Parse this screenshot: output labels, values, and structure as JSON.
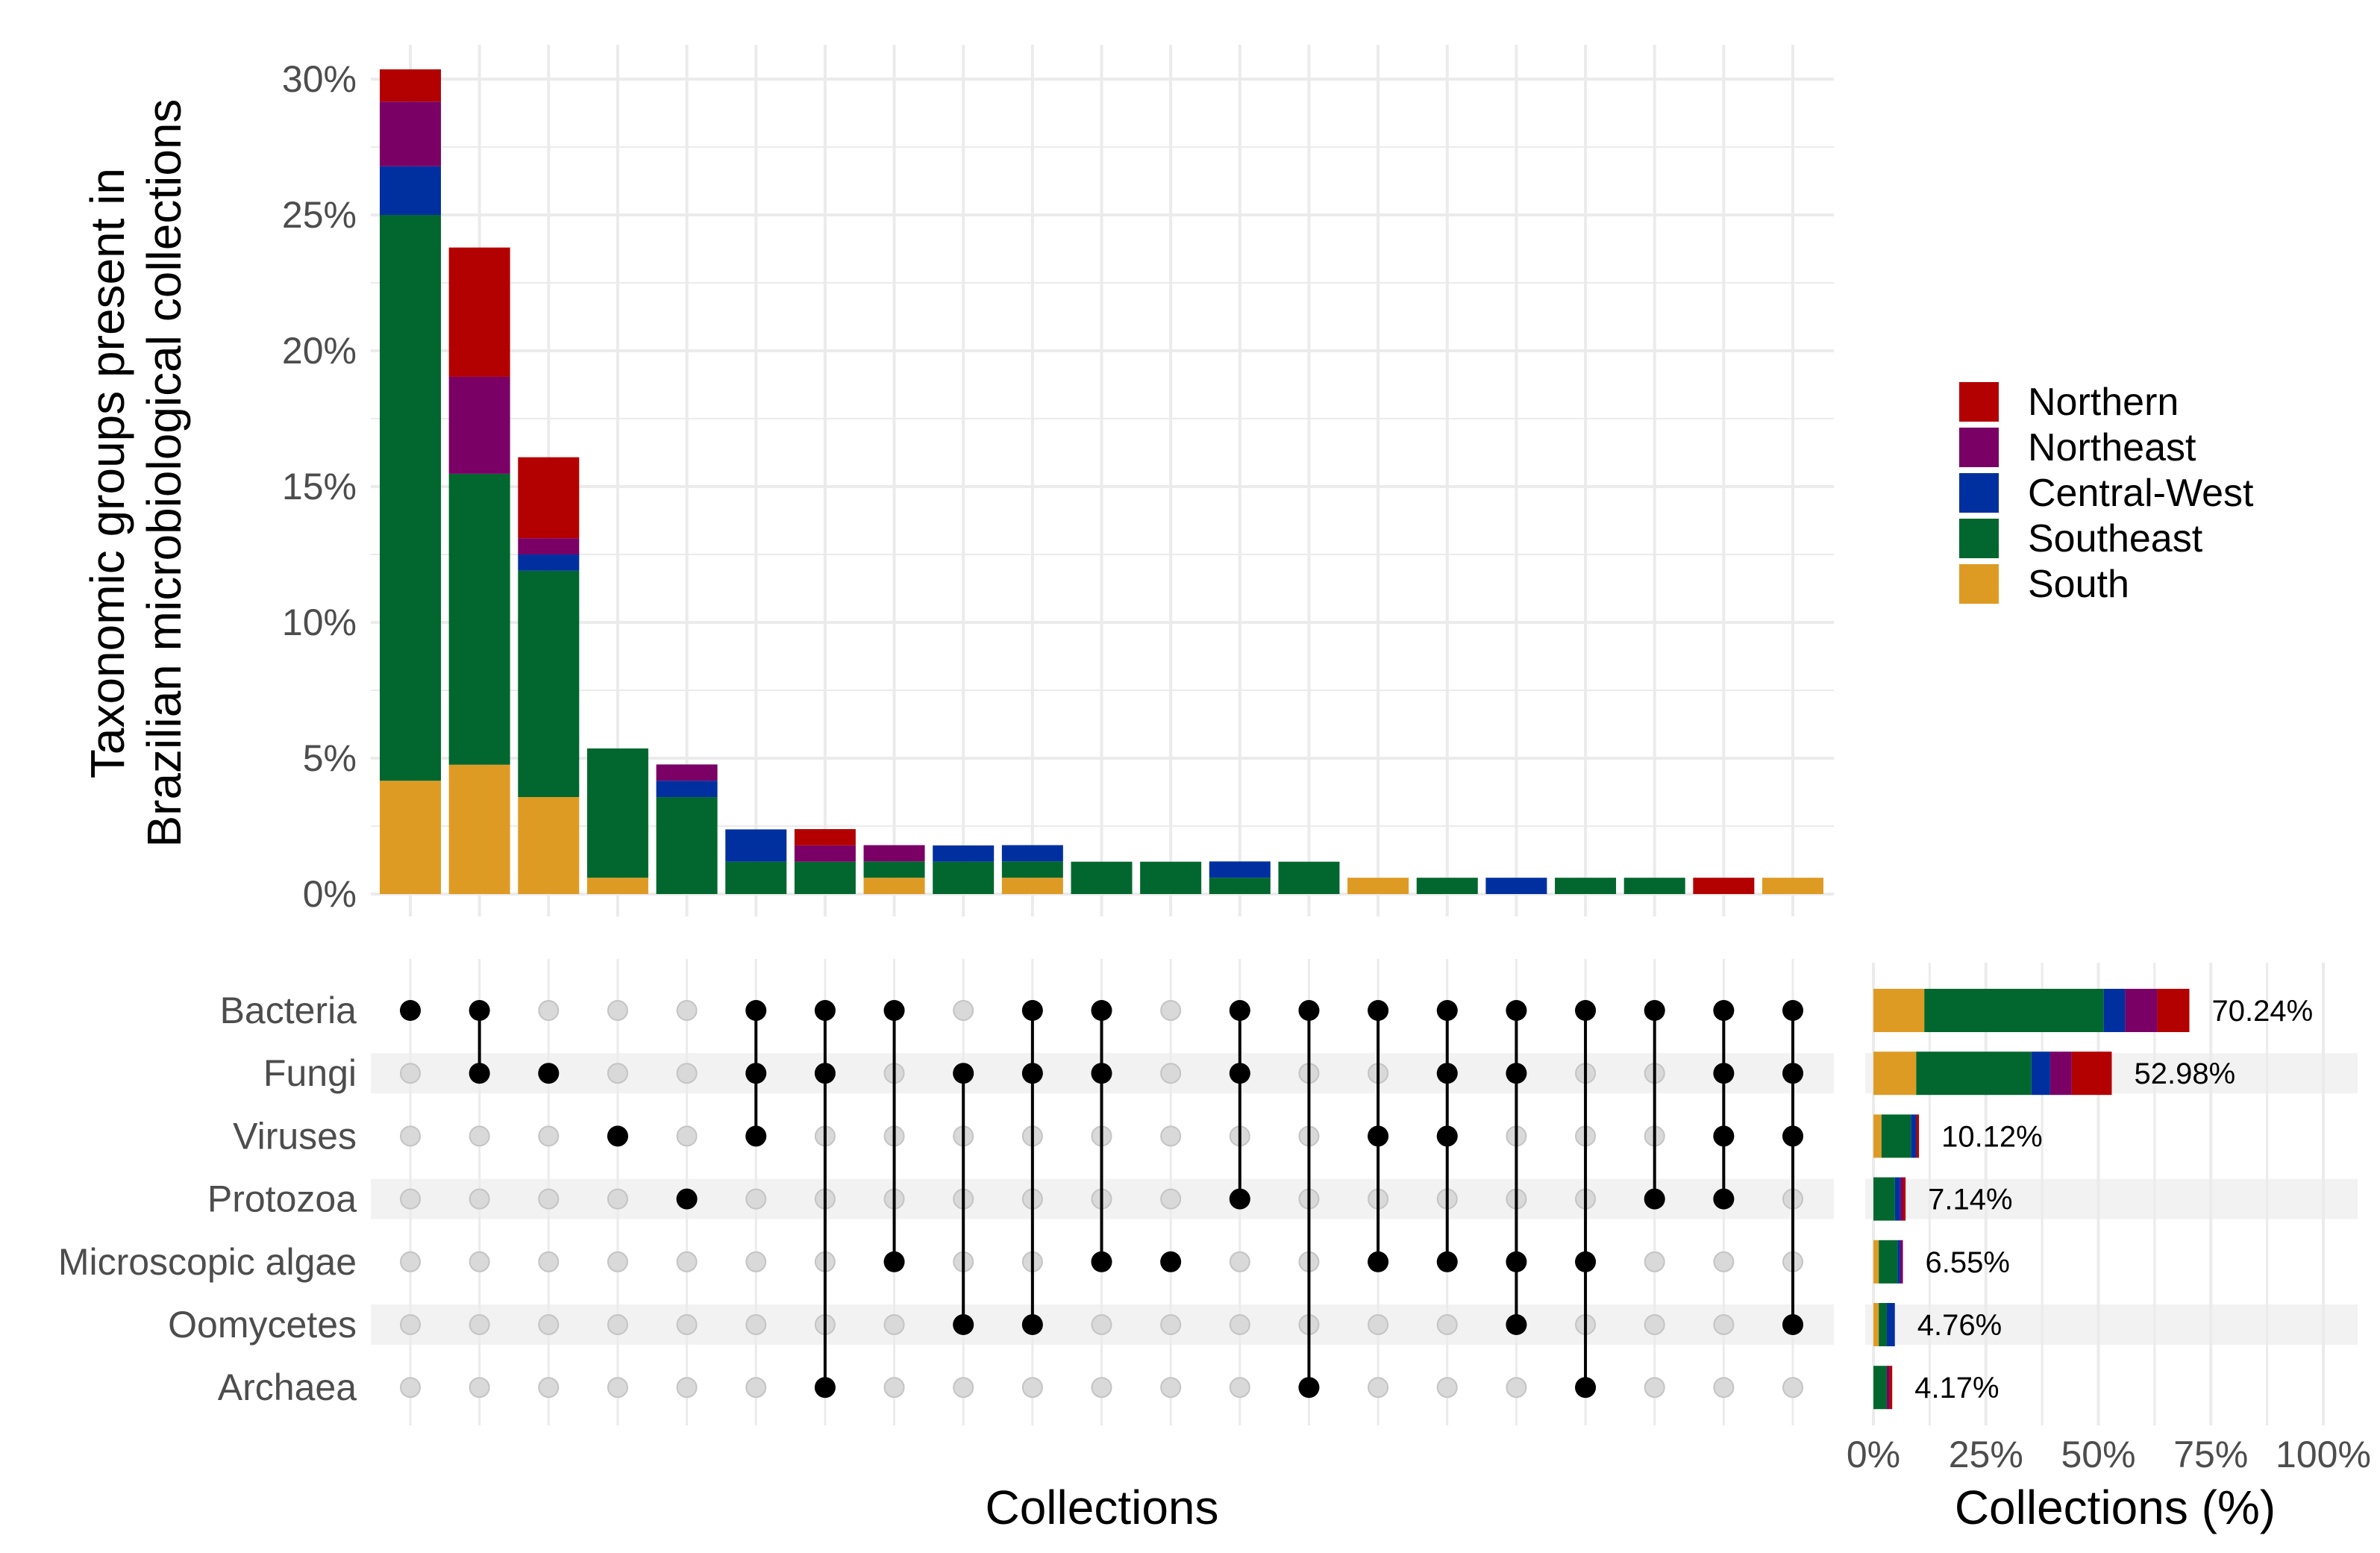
{
  "chart_data": {
    "type": "upset",
    "colors": {
      "South": "#DE9B24",
      "Southeast": "#02672E",
      "Central-West": "#0030A0",
      "Northeast": "#7A0066",
      "Northern": "#B30000"
    },
    "regions_stack_order": [
      "South",
      "Southeast",
      "Central-West",
      "Northeast",
      "Northern"
    ],
    "legend": {
      "placement": "right",
      "entries": [
        "Northern",
        "Northeast",
        "Central-West",
        "Southeast",
        "South"
      ]
    },
    "intersection_chart": {
      "type": "stacked-bar",
      "ylabel_lines": [
        "Taxonomic groups present in",
        "Brazilian microbiological collections"
      ],
      "xlabel": "Collections",
      "ylim": [
        0,
        30
      ],
      "yticks": [
        "0%",
        "5%",
        "10%",
        "15%",
        "20%",
        "25%",
        "30%"
      ],
      "grid": true,
      "bars": [
        {
          "sets": [
            "Bacteria"
          ],
          "values": {
            "South": 4.17,
            "Southeast": 20.83,
            "Central-West": 1.79,
            "Northeast": 2.38,
            "Northern": 1.19
          }
        },
        {
          "sets": [
            "Bacteria",
            "Fungi"
          ],
          "values": {
            "South": 4.76,
            "Southeast": 10.71,
            "Central-West": 0,
            "Northeast": 3.57,
            "Northern": 4.76
          }
        },
        {
          "sets": [
            "Fungi"
          ],
          "values": {
            "South": 3.57,
            "Southeast": 8.33,
            "Central-West": 0.6,
            "Northeast": 0.6,
            "Northern": 2.98
          }
        },
        {
          "sets": [
            "Viruses"
          ],
          "values": {
            "South": 0.6,
            "Southeast": 4.76
          }
        },
        {
          "sets": [
            "Protozoa"
          ],
          "values": {
            "Southeast": 3.57,
            "Central-West": 0.6,
            "Northeast": 0.6
          }
        },
        {
          "sets": [
            "Bacteria",
            "Fungi",
            "Viruses"
          ],
          "values": {
            "Southeast": 1.19,
            "Central-West": 1.19
          }
        },
        {
          "sets": [
            "Bacteria",
            "Fungi",
            "Archaea"
          ],
          "values": {
            "Southeast": 1.19,
            "Northeast": 0.6,
            "Northern": 0.6
          }
        },
        {
          "sets": [
            "Bacteria",
            "Microscopic algae"
          ],
          "values": {
            "South": 0.6,
            "Southeast": 0.6,
            "Northeast": 0.6
          }
        },
        {
          "sets": [
            "Fungi",
            "Oomycetes"
          ],
          "values": {
            "Southeast": 1.19,
            "Central-West": 0.6
          }
        },
        {
          "sets": [
            "Bacteria",
            "Fungi",
            "Oomycetes"
          ],
          "values": {
            "South": 0.6,
            "Southeast": 0.6,
            "Central-West": 0.6
          }
        },
        {
          "sets": [
            "Bacteria",
            "Fungi",
            "Microscopic algae"
          ],
          "values": {
            "Southeast": 1.19
          }
        },
        {
          "sets": [
            "Microscopic algae"
          ],
          "values": {
            "Southeast": 1.19
          }
        },
        {
          "sets": [
            "Bacteria",
            "Fungi",
            "Protozoa"
          ],
          "values": {
            "Southeast": 0.6,
            "Central-West": 0.6
          }
        },
        {
          "sets": [
            "Bacteria",
            "Archaea"
          ],
          "values": {
            "Southeast": 1.19
          }
        },
        {
          "sets": [
            "Bacteria",
            "Viruses",
            "Microscopic algae"
          ],
          "values": {
            "South": 0.6
          }
        },
        {
          "sets": [
            "Bacteria",
            "Fungi",
            "Viruses",
            "Microscopic algae"
          ],
          "values": {
            "Southeast": 0.6
          }
        },
        {
          "sets": [
            "Bacteria",
            "Fungi",
            "Microscopic algae",
            "Oomycetes"
          ],
          "values": {
            "Central-West": 0.6
          }
        },
        {
          "sets": [
            "Bacteria",
            "Microscopic algae",
            "Archaea"
          ],
          "values": {
            "Southeast": 0.6
          }
        },
        {
          "sets": [
            "Bacteria",
            "Protozoa"
          ],
          "values": {
            "Southeast": 0.6
          }
        },
        {
          "sets": [
            "Bacteria",
            "Fungi",
            "Viruses",
            "Protozoa"
          ],
          "values": {
            "Northern": 0.6
          }
        },
        {
          "sets": [
            "Bacteria",
            "Fungi",
            "Viruses",
            "Oomycetes"
          ],
          "values": {
            "South": 0.6
          }
        }
      ]
    },
    "set_size_chart": {
      "type": "stacked-bar-horizontal",
      "xlabel": "Collections (%)",
      "xlim": [
        0,
        100
      ],
      "xticks": [
        "0%",
        "25%",
        "50%",
        "75%",
        "100%"
      ],
      "sets": [
        {
          "name": "Bacteria",
          "total_label": "70.24%",
          "values": {
            "South": 11.31,
            "Southeast": 39.88,
            "Central-West": 4.76,
            "Northeast": 7.14,
            "Northern": 7.14
          }
        },
        {
          "name": "Fungi",
          "total_label": "52.98%",
          "values": {
            "South": 9.52,
            "Southeast": 25.6,
            "Central-West": 4.17,
            "Northeast": 4.76,
            "Northern": 8.93
          }
        },
        {
          "name": "Viruses",
          "total_label": "10.12%",
          "values": {
            "South": 1.79,
            "Southeast": 6.55,
            "Central-West": 1.19,
            "Northern": 0.6
          }
        },
        {
          "name": "Protozoa",
          "total_label": "7.14%",
          "values": {
            "Southeast": 4.76,
            "Central-West": 1.19,
            "Northeast": 0.6,
            "Northern": 0.6
          }
        },
        {
          "name": "Microscopic algae",
          "total_label": "6.55%",
          "values": {
            "South": 1.19,
            "Southeast": 4.17,
            "Central-West": 0.6,
            "Northeast": 0.6
          }
        },
        {
          "name": "Oomycetes",
          "total_label": "4.76%",
          "values": {
            "South": 1.19,
            "Southeast": 1.79,
            "Central-West": 1.79
          }
        },
        {
          "name": "Archaea",
          "total_label": "4.17%",
          "values": {
            "Southeast": 2.98,
            "Northeast": 0.6,
            "Northern": 0.6
          }
        }
      ]
    }
  }
}
